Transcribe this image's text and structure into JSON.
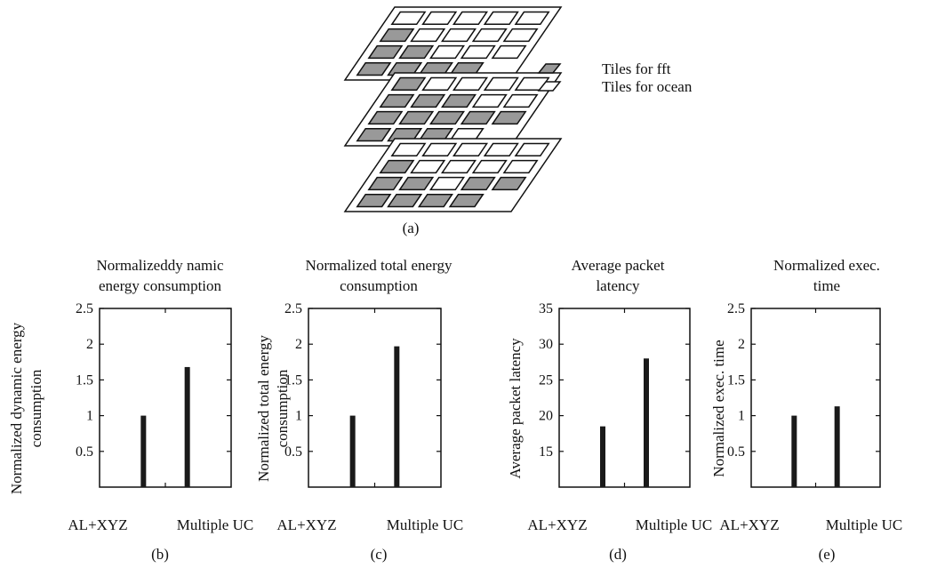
{
  "figure": {
    "panel_a": {
      "label": "(a)",
      "legend": [
        {
          "text": "Tiles for fft",
          "color": "#999999"
        },
        {
          "text": "Tiles for ocean",
          "color": "#ffffff"
        }
      ],
      "layers": [
        [
          "ooooo",
          "foooo",
          "ffooo",
          "ffff"
        ],
        [
          "foooo",
          "fffoo",
          "fffff",
          "fffo"
        ],
        [
          "ooooo",
          "foooo",
          "ffoff",
          "ffff"
        ]
      ]
    }
  },
  "chart_data": [
    {
      "type": "bar",
      "panel_label": "(b)",
      "title_lines": [
        "Normalizeddy namic",
        "energy consumption"
      ],
      "ylabel_lines": [
        "Normalized dynamic energy",
        "consumption"
      ],
      "categories": [
        "AL+XYZ",
        "Multiple UC"
      ],
      "values": [
        1.0,
        1.68
      ],
      "ylim": [
        0,
        2.5
      ],
      "yticks": [
        0.5,
        1,
        1.5,
        2,
        2.5
      ],
      "ytick_labels": [
        "0.5",
        "1",
        "1.5",
        "2",
        "2.5"
      ]
    },
    {
      "type": "bar",
      "panel_label": "(c)",
      "title_lines": [
        "Normalized total energy",
        "consumption"
      ],
      "ylabel_lines": [
        "Normalized total energy",
        "consumption"
      ],
      "categories": [
        "AL+XYZ",
        "Multiple UC"
      ],
      "values": [
        1.0,
        1.97
      ],
      "ylim": [
        0,
        2.5
      ],
      "yticks": [
        0.5,
        1,
        1.5,
        2,
        2.5
      ],
      "ytick_labels": [
        "0.5",
        "1",
        "1.5",
        "2",
        "2.5"
      ]
    },
    {
      "type": "bar",
      "panel_label": "(d)",
      "title_lines": [
        "Average packet",
        "latency"
      ],
      "ylabel_lines": [
        "Average packet latency"
      ],
      "categories": [
        "AL+XYZ",
        "Multiple UC"
      ],
      "values": [
        18.5,
        28.0
      ],
      "ylim": [
        10,
        35
      ],
      "yticks": [
        15,
        20,
        25,
        30,
        35
      ],
      "ytick_labels": [
        "15",
        "20",
        "25",
        "30",
        "35"
      ]
    },
    {
      "type": "bar",
      "panel_label": "(e)",
      "title_lines": [
        "Normalized exec.",
        "time"
      ],
      "ylabel_lines": [
        "Normalized exec. time"
      ],
      "categories": [
        "AL+XYZ",
        "Multiple UC"
      ],
      "values": [
        1.0,
        1.13
      ],
      "ylim": [
        0,
        2.5
      ],
      "yticks": [
        0.5,
        1,
        1.5,
        2,
        2.5
      ],
      "ytick_labels": [
        "0.5",
        "1",
        "1.5",
        "2",
        "2.5"
      ]
    }
  ]
}
